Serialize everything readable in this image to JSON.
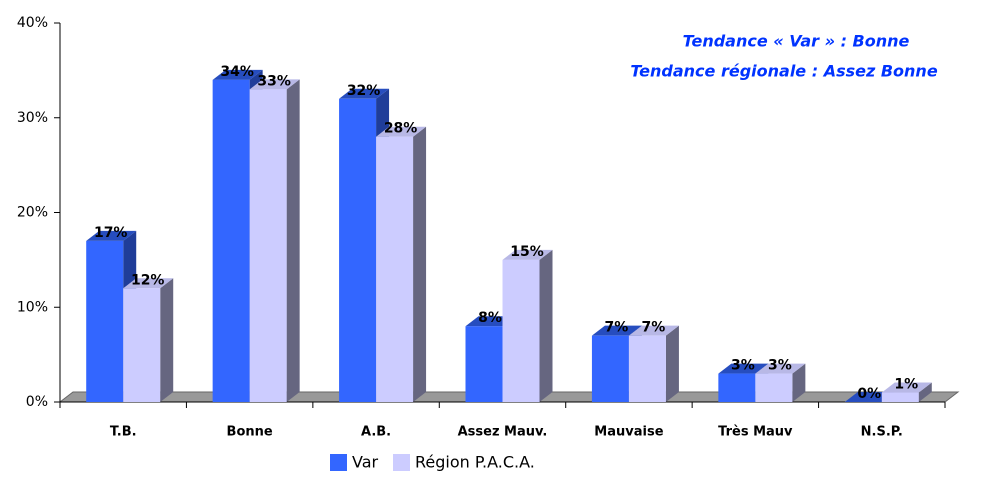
{
  "chart_data": {
    "type": "bar",
    "annotations": [
      "Tendance « Var » : Bonne",
      "Tendance régionale : Assez Bonne"
    ],
    "categories": [
      "T.B.",
      "Bonne",
      "A.B.",
      "Assez Mauv.",
      "Mauvaise",
      "Très Mauv",
      "N.S.P."
    ],
    "series": [
      {
        "name": "Var",
        "color": "#3366ff",
        "values": [
          17,
          34,
          32,
          8,
          7,
          3,
          0
        ],
        "value_labels": [
          "17%",
          "34%",
          "32%",
          "8%",
          "7%",
          "3%",
          "0%"
        ]
      },
      {
        "name": "Région P.A.C.A.",
        "color": "#ccccff",
        "values": [
          12,
          33,
          28,
          15,
          7,
          3,
          1
        ],
        "value_labels": [
          "12%",
          "33%",
          "28%",
          "15%",
          "7%",
          "3%",
          "1%"
        ]
      }
    ],
    "ylim": [
      0,
      40
    ],
    "yticks": [
      {
        "value": 0,
        "label": "0%"
      },
      {
        "value": 10,
        "label": "10%"
      },
      {
        "value": 20,
        "label": "20%"
      },
      {
        "value": 30,
        "label": "30%"
      },
      {
        "value": 40,
        "label": "40%"
      }
    ]
  }
}
